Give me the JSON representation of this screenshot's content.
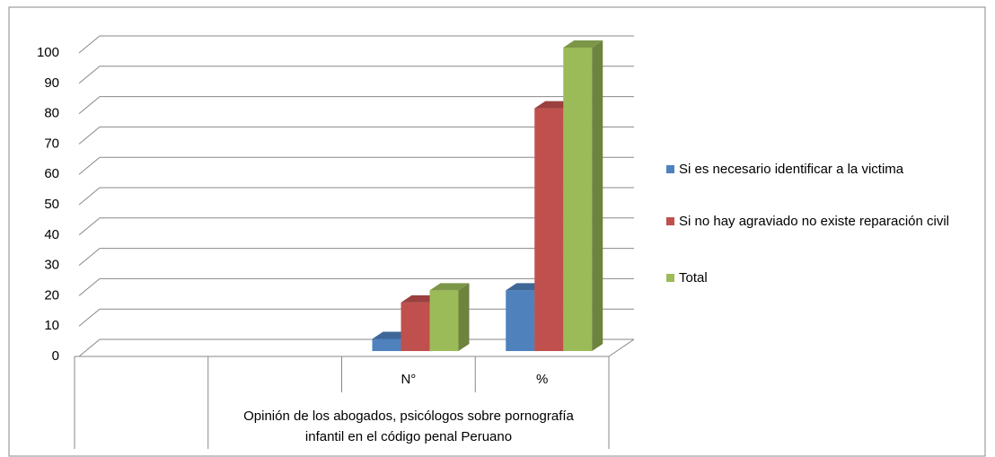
{
  "chart_data": {
    "type": "bar3d",
    "categories": [
      null,
      null,
      "N°",
      "%"
    ],
    "x_group_label": "Opinión de los abogados, psicólogos  sobre pornografía infantil en el código penal Peruano",
    "series": [
      {
        "name": "Si es necesario identificar a la victima",
        "color": "#4f81bd",
        "values": [
          null,
          null,
          4,
          20
        ]
      },
      {
        "name": "Si no hay agraviado no existe reparación civil",
        "color": "#c0504d",
        "values": [
          null,
          null,
          16,
          80
        ]
      },
      {
        "name": "Total",
        "color": "#9bbb59",
        "values": [
          null,
          null,
          20,
          100
        ]
      }
    ],
    "ylim": [
      0,
      100
    ],
    "yticks": [
      0,
      10,
      20,
      30,
      40,
      50,
      60,
      70,
      80,
      90,
      100
    ],
    "grid": true,
    "legend": "right"
  }
}
